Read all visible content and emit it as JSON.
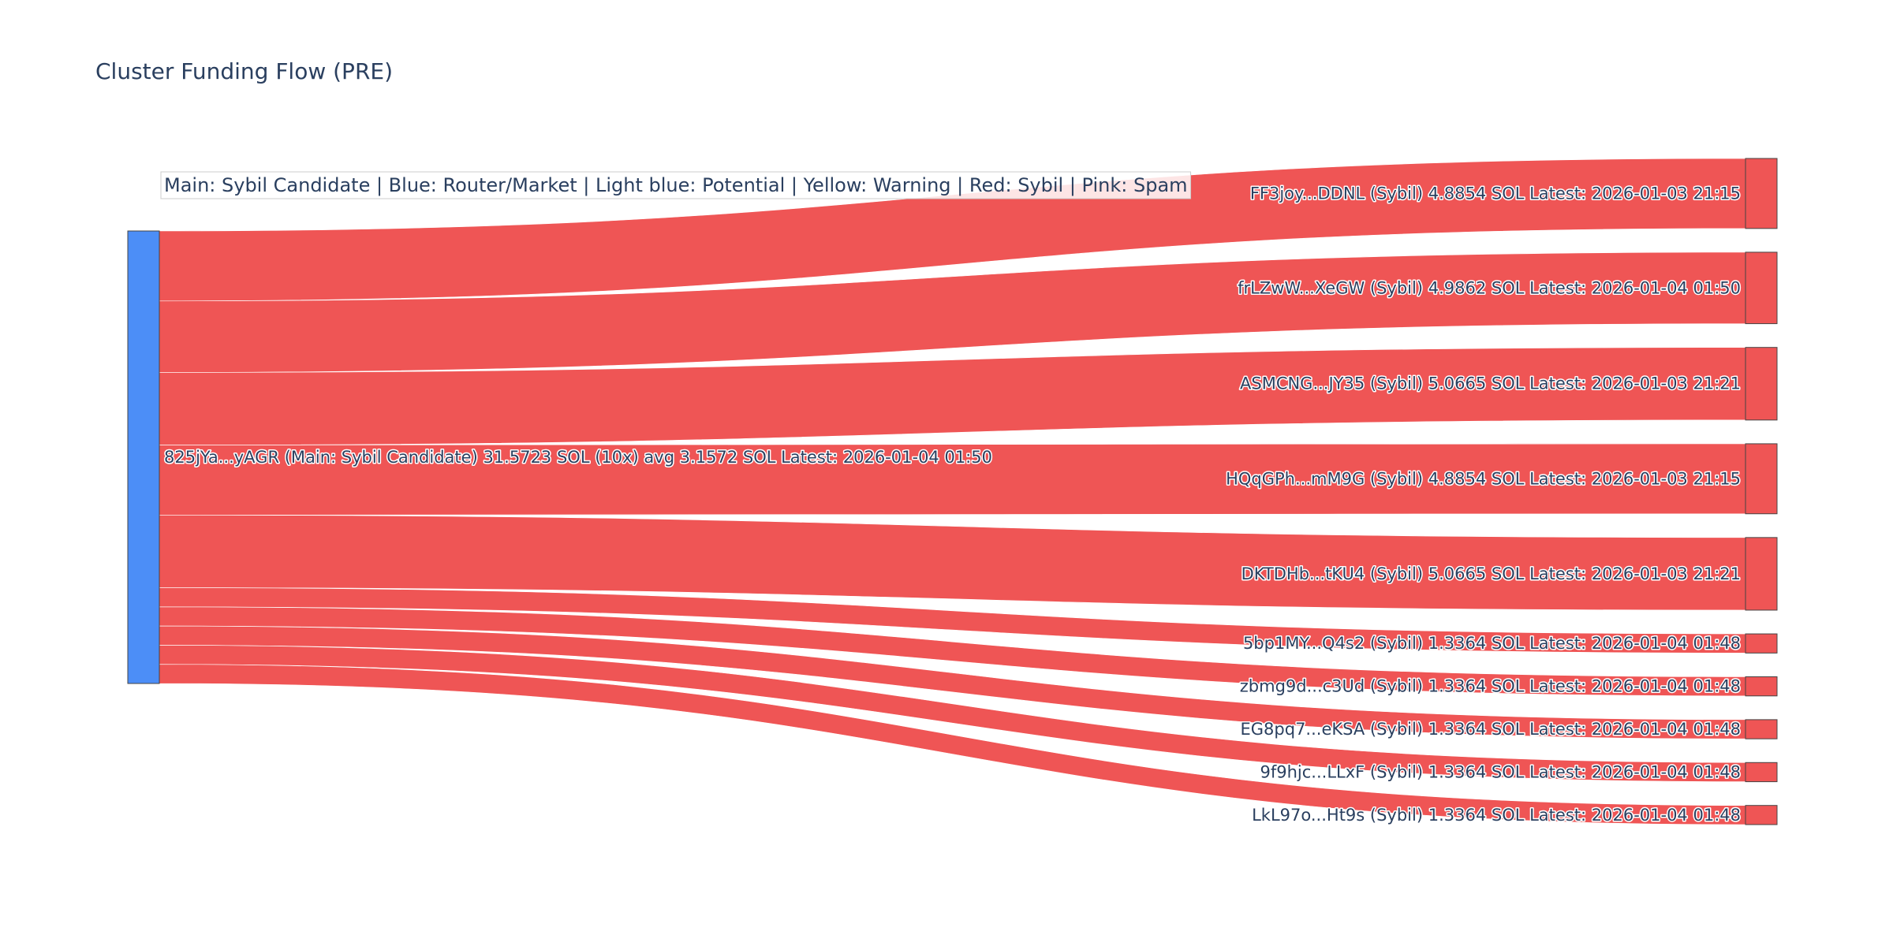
{
  "title": "Cluster Funding Flow (PRE)",
  "legend": "Main: Sybil Candidate  |  Blue: Router/Market | Light blue: Potential | Yellow: Warning | Red: Sybil | Pink: Spam",
  "colors": {
    "main": "#4c8ef7",
    "sybil": "#ef5555",
    "node_border": "#444444",
    "text": "#2a3f5f",
    "legend_border": "#cccccc"
  },
  "chart_data": {
    "type": "sankey",
    "source": {
      "label": "825jYa...yAGR (Main: Sybil Candidate) 31.5723 SOL (10x) avg 3.1572 SOL Latest: 2026-01-04 01:50",
      "total": 31.5723,
      "category": "main"
    },
    "targets": [
      {
        "label": "FF3joy...DDNL (Sybil) 4.8854 SOL Latest: 2026-01-03 21:15",
        "value": 4.8854,
        "category": "sybil"
      },
      {
        "label": "frLZwW...XeGW (Sybil) 4.9862 SOL Latest: 2026-01-04 01:50",
        "value": 4.9862,
        "category": "sybil"
      },
      {
        "label": "ASMCNG...JY35 (Sybil) 5.0665 SOL Latest: 2026-01-03 21:21",
        "value": 5.0665,
        "category": "sybil"
      },
      {
        "label": "HQqGPh...mM9G (Sybil) 4.8854 SOL Latest: 2026-01-03 21:15",
        "value": 4.8854,
        "category": "sybil"
      },
      {
        "label": "DKTDHb...tKU4 (Sybil) 5.0665 SOL Latest: 2026-01-03 21:21",
        "value": 5.0665,
        "category": "sybil"
      },
      {
        "label": "5bp1MY...Q4s2 (Sybil) 1.3364 SOL Latest: 2026-01-04 01:48",
        "value": 1.3364,
        "category": "sybil"
      },
      {
        "label": "zbmg9d...c3Ud (Sybil) 1.3364 SOL Latest: 2026-01-04 01:48",
        "value": 1.3364,
        "category": "sybil"
      },
      {
        "label": "EG8pq7...eKSA (Sybil) 1.3364 SOL Latest: 2026-01-04 01:48",
        "value": 1.3364,
        "category": "sybil"
      },
      {
        "label": "9f9hjc...LLxF (Sybil) 1.3364 SOL Latest: 2026-01-04 01:48",
        "value": 1.3364,
        "category": "sybil"
      },
      {
        "label": "LkL97o...Ht9s (Sybil) 1.3364 SOL Latest: 2026-01-04 01:48",
        "value": 1.3364,
        "category": "sybil"
      }
    ]
  }
}
